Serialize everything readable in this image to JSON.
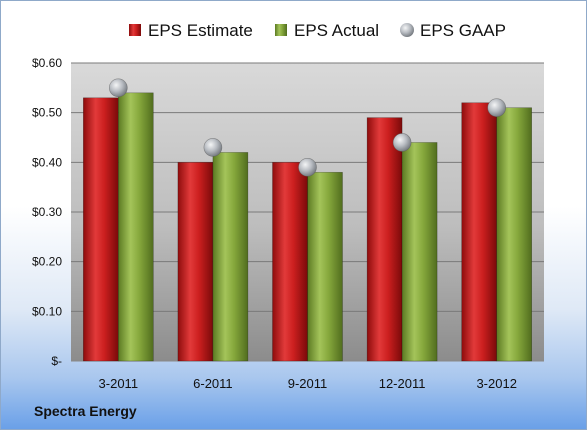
{
  "chart_data": {
    "type": "bar",
    "categories": [
      "3-2011",
      "6-2011",
      "9-2011",
      "12-2011",
      "3-2012"
    ],
    "series": [
      {
        "name": "EPS Estimate",
        "kind": "bar",
        "color": "#cc1f1f",
        "values": [
          0.53,
          0.4,
          0.4,
          0.49,
          0.52
        ]
      },
      {
        "name": "EPS Actual",
        "kind": "bar",
        "color": "#86a83c",
        "values": [
          0.54,
          0.42,
          0.38,
          0.44,
          0.51
        ]
      },
      {
        "name": "EPS GAAP",
        "kind": "marker",
        "color": "#b8bcc2",
        "values": [
          0.55,
          0.43,
          0.39,
          0.44,
          0.51
        ]
      }
    ],
    "y_ticks": [
      {
        "value": 0,
        "label": "$-"
      },
      {
        "value": 0.1,
        "label": "$0.10"
      },
      {
        "value": 0.2,
        "label": "$0.20"
      },
      {
        "value": 0.3,
        "label": "$0.30"
      },
      {
        "value": 0.4,
        "label": "$0.40"
      },
      {
        "value": 0.5,
        "label": "$0.50"
      },
      {
        "value": 0.6,
        "label": "$0.60"
      }
    ],
    "ylim": [
      0,
      0.6
    ],
    "grid": true,
    "legend_position": "top"
  },
  "company": "Spectra Energy"
}
